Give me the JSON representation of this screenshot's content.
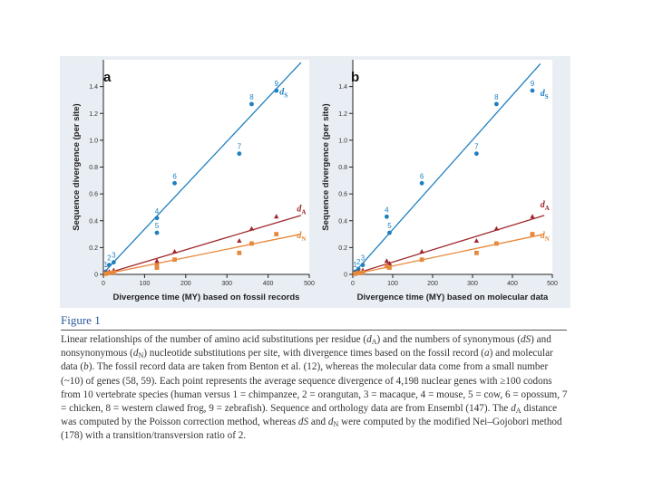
{
  "colors": {
    "panel_bg": "#e9eef4",
    "ds": "#1f7fbf",
    "dA": "#a0282d",
    "dN": "#e8883a",
    "axis": "#222222",
    "caption_title": "#2b5a9a"
  },
  "chart_data": [
    {
      "type": "scatter",
      "panel_label": "a",
      "xlabel": "Divergence time (MY) based on fossil records",
      "ylabel": "Sequence divergence (per site)",
      "xlim": [
        0,
        500
      ],
      "ylim": [
        0,
        1.6
      ],
      "x_ticks": [
        "0",
        "100",
        "200",
        "300",
        "400",
        "500"
      ],
      "y_ticks": [
        "0",
        "0.2",
        "0.4",
        "0.6",
        "0.8",
        "1.0",
        "1.2",
        "1.4"
      ],
      "x_tick_values": [
        0,
        100,
        200,
        300,
        400,
        500
      ],
      "y_tick_values": [
        0,
        0.2,
        0.4,
        0.6,
        0.8,
        1.0,
        1.2,
        1.4
      ],
      "series": [
        {
          "name": "dS",
          "key": "ds",
          "marker": "circle",
          "label_main": "d",
          "label_sub": "S",
          "label_at": [
            428,
            1.34
          ],
          "points": [
            {
              "x": 6,
              "y": 0.02,
              "label": "1"
            },
            {
              "x": 14,
              "y": 0.07,
              "label": "2"
            },
            {
              "x": 25,
              "y": 0.09,
              "label": "3"
            },
            {
              "x": 130,
              "y": 0.42,
              "label": "4"
            },
            {
              "x": 130,
              "y": 0.31,
              "label": "5"
            },
            {
              "x": 173,
              "y": 0.68,
              "label": "6"
            },
            {
              "x": 330,
              "y": 0.9,
              "label": "7"
            },
            {
              "x": 360,
              "y": 1.27,
              "label": "8"
            },
            {
              "x": 420,
              "y": 1.37,
              "label": "9"
            }
          ],
          "fit": {
            "x1": 0,
            "y1": 0.01,
            "x2": 480,
            "y2": 1.58
          }
        },
        {
          "name": "dA",
          "key": "dA",
          "marker": "triangle",
          "label_main": "d",
          "label_sub": "A",
          "label_at": [
            470,
            0.47
          ],
          "points": [
            {
              "x": 6,
              "y": 0.01
            },
            {
              "x": 14,
              "y": 0.02
            },
            {
              "x": 25,
              "y": 0.03
            },
            {
              "x": 130,
              "y": 0.1
            },
            {
              "x": 130,
              "y": 0.08
            },
            {
              "x": 173,
              "y": 0.17
            },
            {
              "x": 330,
              "y": 0.25
            },
            {
              "x": 360,
              "y": 0.34
            },
            {
              "x": 420,
              "y": 0.43
            }
          ],
          "fit": {
            "x1": 0,
            "y1": 0.0,
            "x2": 480,
            "y2": 0.44
          }
        },
        {
          "name": "dN",
          "key": "dN",
          "marker": "square",
          "label_main": "d",
          "label_sub": "N",
          "label_at": [
            470,
            0.27
          ],
          "points": [
            {
              "x": 6,
              "y": 0.005
            },
            {
              "x": 14,
              "y": 0.01
            },
            {
              "x": 25,
              "y": 0.015
            },
            {
              "x": 130,
              "y": 0.06
            },
            {
              "x": 130,
              "y": 0.05
            },
            {
              "x": 173,
              "y": 0.11
            },
            {
              "x": 330,
              "y": 0.16
            },
            {
              "x": 360,
              "y": 0.23
            },
            {
              "x": 420,
              "y": 0.3
            }
          ],
          "fit": {
            "x1": 0,
            "y1": 0.0,
            "x2": 480,
            "y2": 0.3
          }
        }
      ]
    },
    {
      "type": "scatter",
      "panel_label": "b",
      "xlabel": "Divergence time (MY) based on molecular data",
      "ylabel": "Sequence divergence (per site)",
      "xlim": [
        0,
        500
      ],
      "ylim": [
        0,
        1.6
      ],
      "x_ticks": [
        "0",
        "100",
        "200",
        "300",
        "400",
        "500"
      ],
      "y_ticks": [
        "0",
        "0.2",
        "0.4",
        "0.6",
        "0.8",
        "1.0",
        "1.2",
        "1.4"
      ],
      "x_tick_values": [
        0,
        100,
        200,
        300,
        400,
        500
      ],
      "y_tick_values": [
        0,
        0.2,
        0.4,
        0.6,
        0.8,
        1.0,
        1.2,
        1.4
      ],
      "series": [
        {
          "name": "dS",
          "key": "ds",
          "marker": "circle",
          "label_main": "d",
          "label_sub": "S",
          "label_at": [
            470,
            1.33
          ],
          "points": [
            {
              "x": 6,
              "y": 0.02,
              "label": "1"
            },
            {
              "x": 14,
              "y": 0.04,
              "label": "2"
            },
            {
              "x": 25,
              "y": 0.07,
              "label": "3"
            },
            {
              "x": 85,
              "y": 0.43,
              "label": "4"
            },
            {
              "x": 92,
              "y": 0.31,
              "label": "5"
            },
            {
              "x": 173,
              "y": 0.68,
              "label": "6"
            },
            {
              "x": 310,
              "y": 0.9,
              "label": "7"
            },
            {
              "x": 360,
              "y": 1.27,
              "label": "8"
            },
            {
              "x": 450,
              "y": 1.37,
              "label": "9"
            }
          ],
          "fit": {
            "x1": 0,
            "y1": 0.0,
            "x2": 470,
            "y2": 1.57
          }
        },
        {
          "name": "dA",
          "key": "dA",
          "marker": "triangle",
          "label_main": "d",
          "label_sub": "A",
          "label_at": [
            470,
            0.5
          ],
          "points": [
            {
              "x": 6,
              "y": 0.01
            },
            {
              "x": 14,
              "y": 0.02
            },
            {
              "x": 25,
              "y": 0.03
            },
            {
              "x": 85,
              "y": 0.1
            },
            {
              "x": 92,
              "y": 0.08
            },
            {
              "x": 173,
              "y": 0.17
            },
            {
              "x": 310,
              "y": 0.25
            },
            {
              "x": 360,
              "y": 0.34
            },
            {
              "x": 450,
              "y": 0.43
            }
          ],
          "fit": {
            "x1": 0,
            "y1": 0.0,
            "x2": 480,
            "y2": 0.44
          }
        },
        {
          "name": "dN",
          "key": "dN",
          "marker": "square",
          "label_main": "d",
          "label_sub": "N",
          "label_at": [
            470,
            0.27
          ],
          "points": [
            {
              "x": 6,
              "y": 0.005
            },
            {
              "x": 14,
              "y": 0.01
            },
            {
              "x": 25,
              "y": 0.015
            },
            {
              "x": 85,
              "y": 0.06
            },
            {
              "x": 92,
              "y": 0.05
            },
            {
              "x": 173,
              "y": 0.11
            },
            {
              "x": 310,
              "y": 0.16
            },
            {
              "x": 360,
              "y": 0.23
            },
            {
              "x": 450,
              "y": 0.3
            }
          ],
          "fit": {
            "x1": 0,
            "y1": 0.0,
            "x2": 480,
            "y2": 0.3
          }
        }
      ]
    }
  ],
  "figure_title": "Figure 1",
  "caption": {
    "p1": "Linear relationships of the number of amino acid substitutions per residue (",
    "dA_var": "d",
    "dA_sub": "A",
    "p2": ") and the numbers of synonymous (",
    "ds_var": "dS",
    "p3": ") and nonsynonymous (",
    "dN_var": "d",
    "dN_sub": "N",
    "p4": ") nucleotide substitutions per site, with divergence times based on the fossil record (",
    "a_ref": "a",
    "p5": ") and molecular data (",
    "b_ref": "b",
    "p6": "). The fossil record data are taken from Benton et al. (12), whereas the molecular data come from a small number (~10) of genes (58, 59). Each point represents the average sequence divergence of 4,198 nuclear genes with ≥100 codons from 10 vertebrate species (human versus 1 = chimpanzee, 2 = orangutan, 3 = macaque, 4 = mouse, 5 = cow, 6 = opossum, 7 = chicken, 8 = western clawed frog, 9 = zebrafish). Sequence and orthology data are from Ensembl (147). The ",
    "dA2_var": "d",
    "dA2_sub": "A",
    "p7": " distance was computed by the Poisson correction method, whereas ",
    "ds2_var": "dS",
    "p8": " and ",
    "dN2_var": "d",
    "dN2_sub": "N",
    "p9": " were computed by the modified Nei–Gojobori method (178) with a transition/transversion ratio of 2."
  }
}
